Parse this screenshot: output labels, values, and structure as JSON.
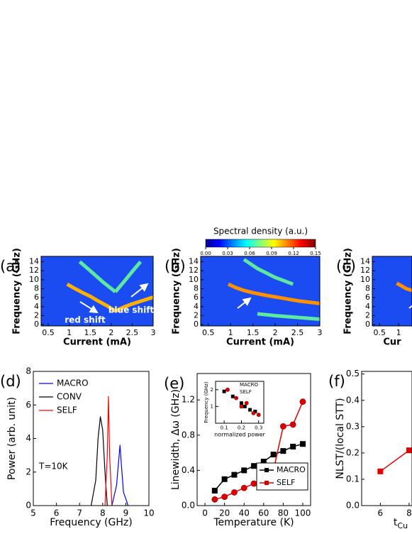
{
  "chart_data": [
    {
      "type": "heatmap",
      "panel": "(a)",
      "xlabel": "Current (mA)",
      "ylabel": "Frequency (GHz)",
      "xlim": [
        0.33,
        3.0
      ],
      "ylim": [
        -0.3,
        15.2
      ],
      "xticks": [
        0.5,
        1,
        1.5,
        2,
        2.5,
        3
      ],
      "yticks": [
        0,
        2,
        4,
        6,
        8,
        10,
        12,
        14
      ],
      "annotations": [
        "red shift",
        "blue shift"
      ],
      "series": [
        {
          "color": "#ffb000",
          "x": [
            0.95,
            1.1,
            1.3,
            1.5,
            1.7,
            1.9,
            2.05,
            2.1
          ],
          "y": [
            9,
            8.2,
            7.2,
            6.3,
            5.2,
            4.2,
            3.3,
            3
          ]
        },
        {
          "color": "#ffb000",
          "x": [
            2.1,
            2.3,
            2.5,
            2.7,
            2.9,
            3.0
          ],
          "y": [
            3,
            3.9,
            4.6,
            5.2,
            5.8,
            6.1
          ]
        },
        {
          "color": "#5ee8a0",
          "x": [
            1.25,
            1.5,
            1.8,
            2.1
          ],
          "y": [
            14,
            12,
            9.5,
            7.3
          ]
        },
        {
          "color": "#5ee8a0",
          "x": [
            2.1,
            2.3,
            2.5,
            2.7
          ],
          "y": [
            7.3,
            9.5,
            11.8,
            14
          ]
        }
      ]
    },
    {
      "type": "heatmap",
      "panel": "(b)",
      "xlabel": "Current (mA)",
      "ylabel": "Frequency (GHz)",
      "xlim": [
        0.33,
        3.0
      ],
      "ylim": [
        -0.3,
        15.2
      ],
      "xticks": [
        0.5,
        1,
        1.5,
        2,
        2.5,
        3
      ],
      "yticks": [
        0,
        2,
        4,
        6,
        8,
        10,
        12,
        14
      ],
      "colorbar": {
        "title": "Spectral density (a.u.)",
        "lim": [
          0,
          0.15
        ],
        "ticks": [
          {
            "value": 0,
            "label": "0.00"
          },
          {
            "value": 0.03,
            "label": "0.03"
          },
          {
            "value": 0.06,
            "label": "0.06"
          },
          {
            "value": 0.09,
            "label": "0.09"
          },
          {
            "value": 0.12,
            "label": "0.12"
          },
          {
            "value": 0.15,
            "label": "0.15"
          }
        ]
      },
      "series": [
        {
          "color": "#ff9000",
          "x": [
            0.95,
            1.1,
            1.3,
            1.5,
            1.8,
            2.1,
            2.5,
            3
          ],
          "y": [
            9,
            8.3,
            7.6,
            7.1,
            6.5,
            6,
            5.3,
            4.7
          ]
        },
        {
          "color": "#5ee8a0",
          "x": [
            1.3,
            1.6,
            2,
            2.4
          ],
          "y": [
            14.5,
            12.5,
            10.5,
            9
          ]
        },
        {
          "color": "#5ee8a0",
          "x": [
            1.6,
            2,
            2.5,
            3
          ],
          "y": [
            2.4,
            2,
            1.6,
            1.2
          ]
        }
      ]
    },
    {
      "type": "heatmap",
      "panel": "(c)",
      "xlabel": "Cur",
      "ylabel": "Frequency (GHz)",
      "xlim": [
        0.31,
        1.35
      ],
      "ylim": [
        -0.3,
        15.2
      ],
      "xticks": [
        0.5,
        1
      ],
      "yticks": [
        0,
        2,
        4,
        6,
        8,
        10,
        12,
        14
      ],
      "series": [
        {
          "color": "#ff9000",
          "x": [
            0.95,
            1.1,
            1.2,
            1.35
          ],
          "y": [
            9.2,
            8.5,
            8,
            7.6
          ]
        }
      ]
    },
    {
      "type": "line",
      "panel": "(d)",
      "xlabel": "Frequency (GHz)",
      "ylabel": "Power (arb. unit)",
      "xlim": [
        5,
        10
      ],
      "ylim": [
        0,
        8
      ],
      "xticks": [
        5,
        6,
        7,
        8,
        9,
        10
      ],
      "yticks": [
        0,
        2,
        4,
        6,
        8
      ],
      "annotation": "T=10K",
      "legend": "upper right",
      "series": [
        {
          "name": "MACRO",
          "color": "#0000ff",
          "x": [
            8.4,
            8.6,
            8.7,
            8.75,
            8.8,
            8.9,
            9.1
          ],
          "y": [
            0,
            1.2,
            2.8,
            3.6,
            2.6,
            0.8,
            0
          ]
        },
        {
          "name": "CONV",
          "color": "#000000",
          "x": [
            7.5,
            7.7,
            7.8,
            7.9,
            8.0,
            8.1,
            8.2
          ],
          "y": [
            0,
            1.5,
            4,
            5.3,
            4.5,
            2,
            0
          ]
        },
        {
          "name": "SELF",
          "color": "#ff0000",
          "x": [
            8.1,
            8.2,
            8.25,
            8.3,
            8.4
          ],
          "y": [
            0,
            3,
            6.5,
            3,
            0
          ]
        }
      ]
    },
    {
      "type": "scatter",
      "panel": "(e)",
      "xlabel": "Temperature (K)",
      "ylabel": "Linewidth, Δω (GHz)",
      "xlim": [
        -8,
        108
      ],
      "ylim": [
        0,
        1.5
      ],
      "xticks": [
        0,
        20,
        40,
        60,
        80,
        100
      ],
      "yticks": [
        {
          "value": 0,
          "label": "0.0"
        },
        {
          "value": 0.4,
          "label": "0.4"
        },
        {
          "value": 0.8,
          "label": "0.8"
        },
        {
          "value": 1.2,
          "label": "1.2"
        }
      ],
      "legend": "lower right",
      "series": [
        {
          "name": "MACRO",
          "color": "#000000",
          "marker": "square",
          "x": [
            10,
            20,
            30,
            40,
            50,
            60,
            70,
            80,
            90,
            100
          ],
          "y": [
            0.17,
            0.3,
            0.35,
            0.4,
            0.45,
            0.5,
            0.58,
            0.62,
            0.67,
            0.7
          ]
        },
        {
          "name": "SELF",
          "color": "#e00000",
          "marker": "circle",
          "x": [
            10,
            20,
            30,
            40,
            50,
            60,
            70,
            80,
            90,
            100
          ],
          "y": [
            0.07,
            0.1,
            0.15,
            0.2,
            0.25,
            0.32,
            0.4,
            0.9,
            0.92,
            1.18
          ]
        }
      ],
      "inset": {
        "xlabel": "normalized power",
        "ylabel": "Frequency (GHz)",
        "xlim": [
          0.05,
          0.33
        ],
        "ylim": [
          0,
          2.5
        ],
        "xticks": [
          0.1,
          0.2,
          0.3
        ],
        "yticks": [
          1,
          2
        ],
        "series": [
          {
            "name": "MACRO",
            "color": "#000000",
            "marker": "square",
            "x": [
              0.1,
              0.15,
              0.2,
              0.22,
              0.25,
              0.28
            ],
            "y": [
              1.9,
              1.6,
              1.2,
              1.0,
              0.8,
              0.7
            ]
          },
          {
            "name": "SELF",
            "color": "#e00000",
            "marker": "circle",
            "x": [
              0.12,
              0.17,
              0.2,
              0.23,
              0.27,
              0.3
            ],
            "y": [
              2.0,
              1.5,
              1.0,
              1.2,
              0.6,
              0.5
            ]
          }
        ]
      }
    },
    {
      "type": "scatter",
      "panel": "(f)",
      "xlabel": "t",
      "xlabel_sub": "Cu",
      "ylabel": "NLST/(local STT)",
      "xlim": [
        4.7,
        8.2
      ],
      "ylim": [
        0,
        0.51
      ],
      "xticks": [
        6,
        8
      ],
      "yticks": [
        {
          "value": 0,
          "label": "0.0"
        },
        {
          "value": 0.1,
          "label": "0.1"
        },
        {
          "value": 0.2,
          "label": "0.2"
        },
        {
          "value": 0.3,
          "label": "0.3"
        },
        {
          "value": 0.4,
          "label": "0.4"
        },
        {
          "value": 0.5,
          "label": "0.5"
        }
      ],
      "series": [
        {
          "color": "#e00000",
          "marker": "square",
          "x": [
            6,
            8
          ],
          "y": [
            0.13,
            0.21
          ]
        }
      ]
    }
  ]
}
